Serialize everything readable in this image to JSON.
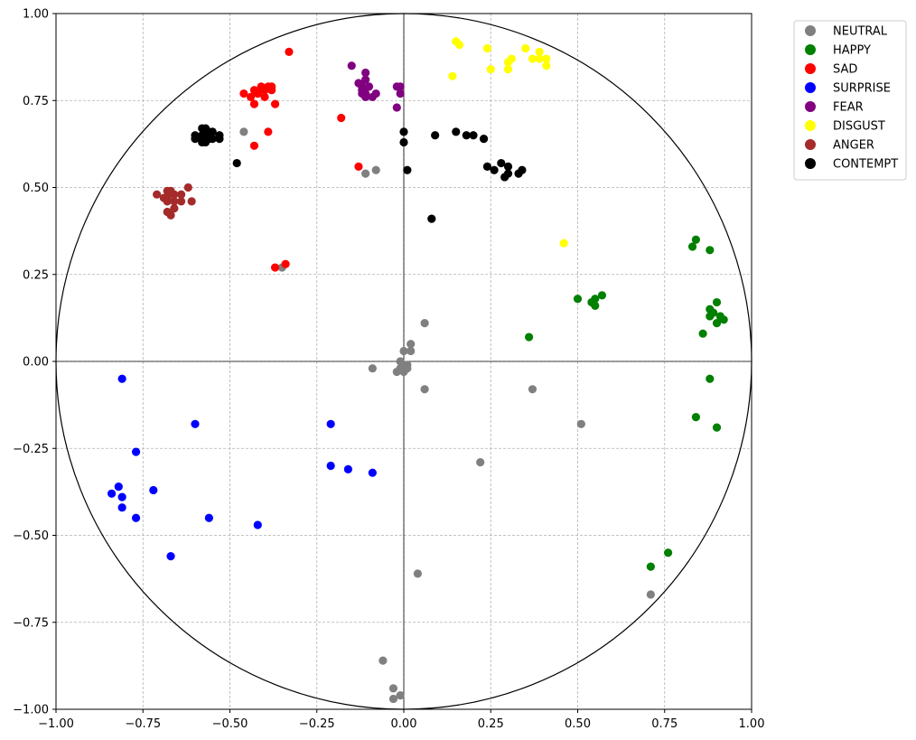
{
  "chart_data": {
    "type": "scatter",
    "title": "",
    "xlabel": "",
    "ylabel": "",
    "xlim": [
      -1.0,
      1.0
    ],
    "ylim": [
      -1.0,
      1.0
    ],
    "grid": true,
    "unit_circle": true,
    "axis_lines": true,
    "legend_position": "outside-top-right",
    "xticks": [
      -1.0,
      -0.75,
      -0.5,
      -0.25,
      0.0,
      0.25,
      0.5,
      0.75,
      1.0
    ],
    "yticks": [
      -1.0,
      -0.75,
      -0.5,
      -0.25,
      0.0,
      0.25,
      0.5,
      0.75,
      1.0
    ],
    "xtick_labels": [
      "−1.00",
      "−0.75",
      "−0.50",
      "−0.25",
      "0.00",
      "0.25",
      "0.50",
      "0.75",
      "1.00"
    ],
    "ytick_labels": [
      "−1.00",
      "−0.75",
      "−0.50",
      "−0.25",
      "0.00",
      "0.25",
      "0.50",
      "0.75",
      "1.00"
    ],
    "series": [
      {
        "name": "NEUTRAL",
        "color": "#808080",
        "points": [
          [
            -0.46,
            0.66
          ],
          [
            -0.35,
            0.27
          ],
          [
            -0.08,
            0.55
          ],
          [
            -0.11,
            0.54
          ],
          [
            0.06,
            0.11
          ],
          [
            0.02,
            0.05
          ],
          [
            0.0,
            0.03
          ],
          [
            0.02,
            0.03
          ],
          [
            -0.01,
            0.0
          ],
          [
            0.0,
            -0.01
          ],
          [
            0.01,
            -0.01
          ],
          [
            0.01,
            -0.02
          ],
          [
            -0.01,
            -0.02
          ],
          [
            -0.02,
            -0.03
          ],
          [
            0.0,
            -0.03
          ],
          [
            -0.09,
            -0.02
          ],
          [
            0.06,
            -0.08
          ],
          [
            0.37,
            -0.08
          ],
          [
            0.51,
            -0.18
          ],
          [
            0.22,
            -0.29
          ],
          [
            0.04,
            -0.61
          ],
          [
            0.71,
            -0.67
          ],
          [
            -0.06,
            -0.86
          ],
          [
            -0.03,
            -0.94
          ],
          [
            -0.03,
            -0.97
          ],
          [
            -0.01,
            -0.96
          ]
        ]
      },
      {
        "name": "HAPPY",
        "color": "#008000",
        "points": [
          [
            0.84,
            0.35
          ],
          [
            0.83,
            0.33
          ],
          [
            0.88,
            0.32
          ],
          [
            0.5,
            0.18
          ],
          [
            0.54,
            0.17
          ],
          [
            0.55,
            0.18
          ],
          [
            0.55,
            0.16
          ],
          [
            0.57,
            0.19
          ],
          [
            0.9,
            0.17
          ],
          [
            0.88,
            0.15
          ],
          [
            0.89,
            0.14
          ],
          [
            0.88,
            0.13
          ],
          [
            0.91,
            0.13
          ],
          [
            0.92,
            0.12
          ],
          [
            0.9,
            0.11
          ],
          [
            0.86,
            0.08
          ],
          [
            0.36,
            0.07
          ],
          [
            0.88,
            -0.05
          ],
          [
            0.84,
            -0.16
          ],
          [
            0.9,
            -0.19
          ],
          [
            0.76,
            -0.55
          ],
          [
            0.71,
            -0.59
          ]
        ]
      },
      {
        "name": "SAD",
        "color": "#ff0000",
        "points": [
          [
            -0.33,
            0.89
          ],
          [
            -0.46,
            0.77
          ],
          [
            -0.44,
            0.76
          ],
          [
            -0.43,
            0.78
          ],
          [
            -0.42,
            0.77
          ],
          [
            -0.41,
            0.79
          ],
          [
            -0.4,
            0.78
          ],
          [
            -0.39,
            0.79
          ],
          [
            -0.38,
            0.78
          ],
          [
            -0.38,
            0.79
          ],
          [
            -0.4,
            0.76
          ],
          [
            -0.43,
            0.74
          ],
          [
            -0.37,
            0.74
          ],
          [
            -0.42,
            0.77
          ],
          [
            -0.18,
            0.7
          ],
          [
            -0.39,
            0.66
          ],
          [
            -0.43,
            0.62
          ],
          [
            -0.13,
            0.56
          ],
          [
            -0.37,
            0.27
          ],
          [
            -0.34,
            0.28
          ]
        ]
      },
      {
        "name": "SURPRISE",
        "color": "#0000ff",
        "points": [
          [
            -0.81,
            -0.05
          ],
          [
            -0.6,
            -0.18
          ],
          [
            -0.21,
            -0.18
          ],
          [
            -0.77,
            -0.26
          ],
          [
            -0.21,
            -0.3
          ],
          [
            -0.16,
            -0.31
          ],
          [
            -0.09,
            -0.32
          ],
          [
            -0.82,
            -0.36
          ],
          [
            -0.72,
            -0.37
          ],
          [
            -0.84,
            -0.38
          ],
          [
            -0.81,
            -0.39
          ],
          [
            -0.81,
            -0.42
          ],
          [
            -0.77,
            -0.45
          ],
          [
            -0.56,
            -0.45
          ],
          [
            -0.42,
            -0.47
          ],
          [
            -0.67,
            -0.56
          ]
        ]
      },
      {
        "name": "FEAR",
        "color": "#800080",
        "points": [
          [
            -0.15,
            0.85
          ],
          [
            -0.11,
            0.83
          ],
          [
            -0.13,
            0.8
          ],
          [
            -0.12,
            0.79
          ],
          [
            -0.11,
            0.81
          ],
          [
            -0.12,
            0.78
          ],
          [
            -0.1,
            0.79
          ],
          [
            -0.11,
            0.77
          ],
          [
            -0.12,
            0.77
          ],
          [
            -0.11,
            0.76
          ],
          [
            -0.09,
            0.76
          ],
          [
            -0.08,
            0.77
          ],
          [
            -0.02,
            0.79
          ],
          [
            -0.01,
            0.79
          ],
          [
            -0.01,
            0.77
          ],
          [
            -0.02,
            0.73
          ]
        ]
      },
      {
        "name": "DISGUST",
        "color": "#ffff00",
        "points": [
          [
            0.15,
            0.92
          ],
          [
            0.16,
            0.91
          ],
          [
            0.24,
            0.9
          ],
          [
            0.35,
            0.9
          ],
          [
            0.39,
            0.89
          ],
          [
            0.37,
            0.87
          ],
          [
            0.39,
            0.87
          ],
          [
            0.41,
            0.87
          ],
          [
            0.41,
            0.85
          ],
          [
            0.31,
            0.87
          ],
          [
            0.3,
            0.86
          ],
          [
            0.25,
            0.84
          ],
          [
            0.3,
            0.84
          ],
          [
            0.14,
            0.82
          ],
          [
            0.46,
            0.34
          ]
        ]
      },
      {
        "name": "ANGER",
        "color": "#a52a2a",
        "points": [
          [
            -0.62,
            0.5
          ],
          [
            -0.71,
            0.48
          ],
          [
            -0.68,
            0.49
          ],
          [
            -0.67,
            0.49
          ],
          [
            -0.69,
            0.47
          ],
          [
            -0.68,
            0.47
          ],
          [
            -0.66,
            0.48
          ],
          [
            -0.64,
            0.48
          ],
          [
            -0.68,
            0.46
          ],
          [
            -0.66,
            0.46
          ],
          [
            -0.64,
            0.46
          ],
          [
            -0.61,
            0.46
          ],
          [
            -0.66,
            0.44
          ],
          [
            -0.68,
            0.43
          ],
          [
            -0.67,
            0.42
          ]
        ]
      },
      {
        "name": "CONTEMPT",
        "color": "#000000",
        "points": [
          [
            -0.58,
            0.67
          ],
          [
            -0.57,
            0.67
          ],
          [
            -0.6,
            0.65
          ],
          [
            -0.58,
            0.65
          ],
          [
            -0.57,
            0.65
          ],
          [
            -0.56,
            0.66
          ],
          [
            -0.55,
            0.66
          ],
          [
            -0.53,
            0.65
          ],
          [
            -0.6,
            0.64
          ],
          [
            -0.58,
            0.64
          ],
          [
            -0.56,
            0.64
          ],
          [
            -0.55,
            0.64
          ],
          [
            -0.53,
            0.64
          ],
          [
            -0.57,
            0.63
          ],
          [
            -0.58,
            0.63
          ],
          [
            -0.48,
            0.57
          ],
          [
            0.0,
            0.66
          ],
          [
            0.0,
            0.63
          ],
          [
            0.09,
            0.65
          ],
          [
            0.15,
            0.66
          ],
          [
            0.18,
            0.65
          ],
          [
            0.2,
            0.65
          ],
          [
            0.23,
            0.64
          ],
          [
            0.01,
            0.55
          ],
          [
            0.24,
            0.56
          ],
          [
            0.26,
            0.55
          ],
          [
            0.28,
            0.57
          ],
          [
            0.3,
            0.56
          ],
          [
            0.29,
            0.53
          ],
          [
            0.3,
            0.54
          ],
          [
            0.33,
            0.54
          ],
          [
            0.34,
            0.55
          ],
          [
            0.08,
            0.41
          ]
        ]
      }
    ]
  }
}
